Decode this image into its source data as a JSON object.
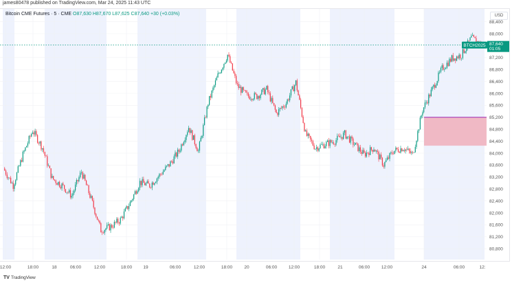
{
  "published": "james80478 published on TradingView.com, Mar 24, 2025 11:43 UTC",
  "legend": {
    "symbol": "Bitcoin CME Futures · 5 · CME",
    "open": "O87,630",
    "high": "H87,670",
    "low": "L87,625",
    "close": "C87,640",
    "change": "+30 (+0.03%)"
  },
  "currency": "USD",
  "symbol_label": "BTCH2025",
  "last_price_label": "87,640",
  "countdown": "01:05",
  "brand": "TradingView",
  "colors": {
    "up": "#089981",
    "down": "#f23645",
    "session_band": "#eef2fd",
    "gap_zone": "#f0b3bf",
    "gap_line": "#9c27b0",
    "last_price": "#089981"
  },
  "chart_data": {
    "type": "candlestick",
    "title": "",
    "ylim": [
      80600,
      88600
    ],
    "grid": true,
    "y_ticks": [
      "88,400",
      "88,000",
      "87,200",
      "86,800",
      "86,400",
      "86,000",
      "85,600",
      "85,200",
      "84,800",
      "84,400",
      "84,000",
      "83,600",
      "83,200",
      "82,800",
      "82,400",
      "82,000",
      "81,600",
      "81,200",
      "80,800"
    ],
    "x_ticks": [
      "12:00",
      "18:00",
      "18",
      "06:00",
      "12:00",
      "18:00",
      "19",
      "06:00",
      "12:00",
      "18:00",
      "20",
      "06:00",
      "12:00",
      "18:00",
      "21",
      "06:00",
      "12:00",
      "24",
      "06:00",
      "12:"
    ],
    "approx_closes": [
      83490,
      82920,
      83950,
      84760,
      84180,
      83150,
      82920,
      82570,
      83380,
      82460,
      81420,
      81540,
      81770,
      82340,
      83030,
      82920,
      83260,
      83610,
      84070,
      84870,
      84070,
      85680,
      86600,
      87290,
      86250,
      85910,
      85910,
      86140,
      85330,
      85680,
      86370,
      84640,
      84180,
      84300,
      84410,
      84640,
      84300,
      83950,
      84180,
      83610,
      84070,
      84180,
      83950,
      85450,
      86140,
      86830,
      87170,
      87290,
      87860,
      87640
    ],
    "last_price": 87640,
    "cme_gap": {
      "from": 84250,
      "to": 85200
    }
  }
}
